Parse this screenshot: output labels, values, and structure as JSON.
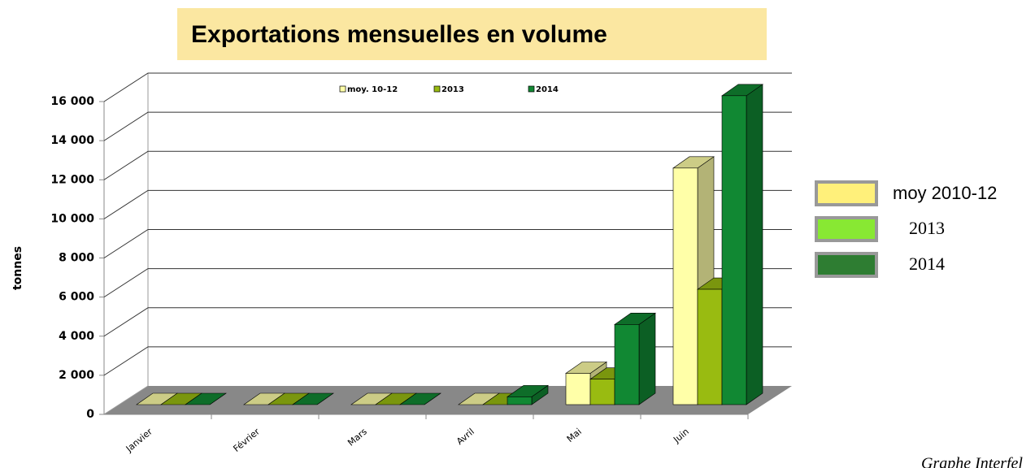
{
  "chart_data": {
    "type": "bar3d",
    "title": "Exportations mensuelles en volume",
    "y_label": "tonnes",
    "categories": [
      "Janvier",
      "Février",
      "Mars",
      "Avril",
      "Mai",
      "Juin"
    ],
    "series": [
      {
        "name": "moy. 10-12",
        "color": "#ffffa8",
        "values": [
          0,
          0,
          0,
          0,
          1600,
          12100
        ]
      },
      {
        "name": "2013",
        "color": "#99bb11",
        "values": [
          0,
          0,
          0,
          0,
          1300,
          5900
        ]
      },
      {
        "name": "2014",
        "color": "#118833",
        "values": [
          0,
          0,
          0,
          400,
          4100,
          15800
        ]
      }
    ],
    "ylim": [
      0,
      16000
    ],
    "yticks": [
      0,
      {
        "value": 2000,
        "label": "2 000"
      },
      {
        "value": 4000,
        "label": "4 000"
      },
      {
        "value": 6000,
        "label": "6 000"
      },
      {
        "value": 8000,
        "label": "8 000"
      },
      {
        "value": 10000,
        "label": "10 000"
      },
      {
        "value": 12000,
        "label": "12 000"
      },
      {
        "value": 14000,
        "label": "14 000"
      },
      {
        "value": 16000,
        "label": "16 000"
      }
    ],
    "grid": true,
    "side_legend": [
      {
        "name": "moy 2010-12",
        "color": "#fff07a"
      },
      {
        "name": "2013",
        "color": "#88e833"
      },
      {
        "name": "2014",
        "color": "#2e7d32"
      }
    ],
    "source": "Graphe Interfel"
  }
}
